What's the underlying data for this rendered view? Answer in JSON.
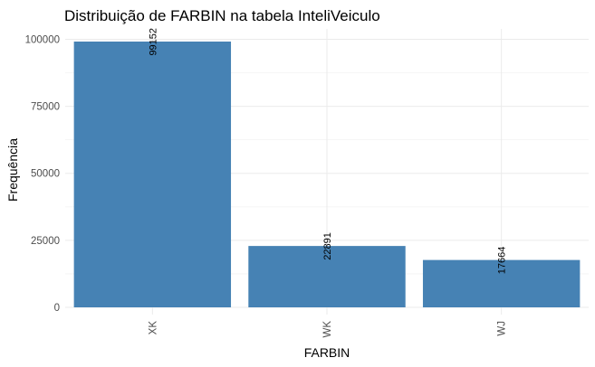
{
  "chart_data": {
    "type": "bar",
    "title": "Distribuição de FARBIN na tabela InteliVeiculo",
    "xlabel": "FARBIN",
    "ylabel": "Frequência",
    "categories": [
      "XK",
      "WK",
      "WJ"
    ],
    "values": [
      99152,
      22891,
      17664
    ],
    "data_labels": [
      "99152",
      "22891",
      "17664"
    ],
    "y_ticks": [
      0,
      25000,
      50000,
      75000,
      100000
    ],
    "y_tick_labels": [
      "0",
      "25000",
      "50000",
      "75000",
      "100000"
    ],
    "ylim": [
      0,
      104000
    ],
    "grid": true,
    "legend": "none",
    "bar_color": "#4682B4"
  }
}
